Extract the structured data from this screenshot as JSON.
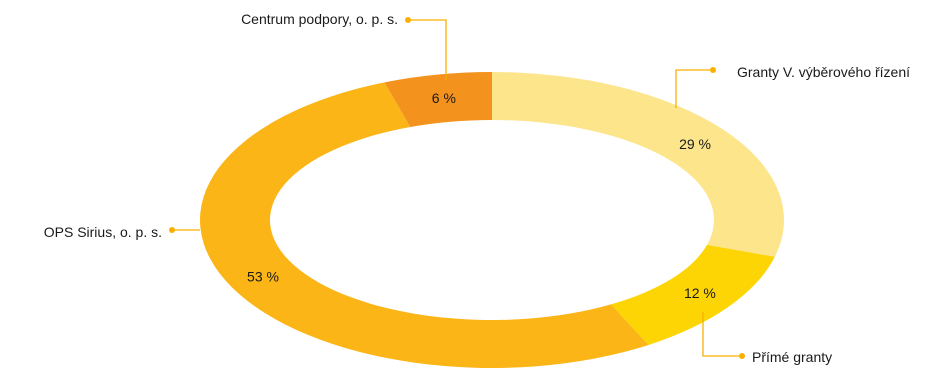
{
  "chart_data": {
    "type": "pie",
    "variant": "donut",
    "title": "",
    "legend": "none",
    "slices": [
      {
        "label": "Granty V. výběrového řízení",
        "value": 29,
        "value_label": "29 %",
        "color": "#FDE58C"
      },
      {
        "label": "Přímé granty",
        "value": 12,
        "value_label": "12 %",
        "color": "#FDD505"
      },
      {
        "label": "OPS Sirius, o. p. s.",
        "value": 53,
        "value_label": "53 %",
        "color": "#FBB516"
      },
      {
        "label": "Centrum podpory, o. p. s.",
        "value": 6,
        "value_label": "6 %",
        "color": "#F4921E"
      }
    ],
    "leader_color": "#F9B000"
  }
}
